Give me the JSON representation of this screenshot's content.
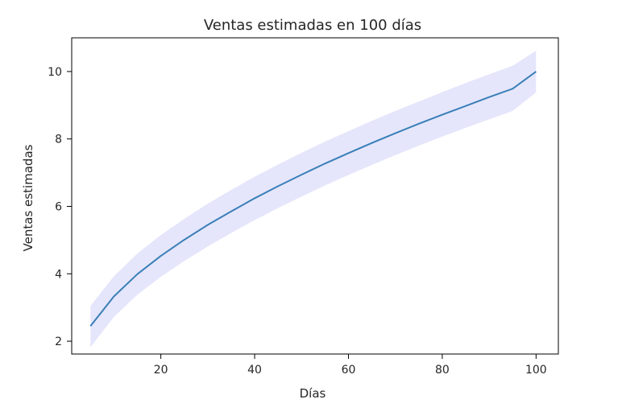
{
  "chart_data": {
    "type": "line",
    "title": "Ventas estimadas en 100 días",
    "xlabel": "Días",
    "ylabel": "Ventas estimadas",
    "xlim": [
      1,
      104.75
    ],
    "ylim": [
      1.62,
      11.0
    ],
    "grid": false,
    "x_ticks": [
      20,
      40,
      60,
      80,
      100
    ],
    "y_ticks": [
      2,
      4,
      6,
      8,
      10
    ],
    "series": [
      {
        "color": "#3a7fb8",
        "band_color": "#e5e6fb",
        "x": [
          5,
          10,
          15,
          20,
          25,
          30,
          35,
          40,
          45,
          50,
          55,
          60,
          65,
          70,
          75,
          80,
          85,
          90,
          95,
          100
        ],
        "y": [
          2.45,
          3.33,
          3.99,
          4.53,
          5.01,
          5.45,
          5.85,
          6.24,
          6.6,
          6.94,
          7.27,
          7.58,
          7.88,
          8.17,
          8.45,
          8.72,
          8.98,
          9.24,
          9.49,
          10.0
        ],
        "lower": [
          1.82,
          2.72,
          3.38,
          3.91,
          4.38,
          4.81,
          5.21,
          5.59,
          5.95,
          6.29,
          6.62,
          6.93,
          7.23,
          7.52,
          7.8,
          8.07,
          8.33,
          8.58,
          8.83,
          9.38
        ],
        "upper": [
          3.05,
          3.93,
          4.6,
          5.15,
          5.63,
          6.08,
          6.49,
          6.88,
          7.24,
          7.59,
          7.92,
          8.23,
          8.54,
          8.83,
          9.11,
          9.39,
          9.66,
          9.92,
          10.17,
          10.62
        ]
      }
    ]
  }
}
